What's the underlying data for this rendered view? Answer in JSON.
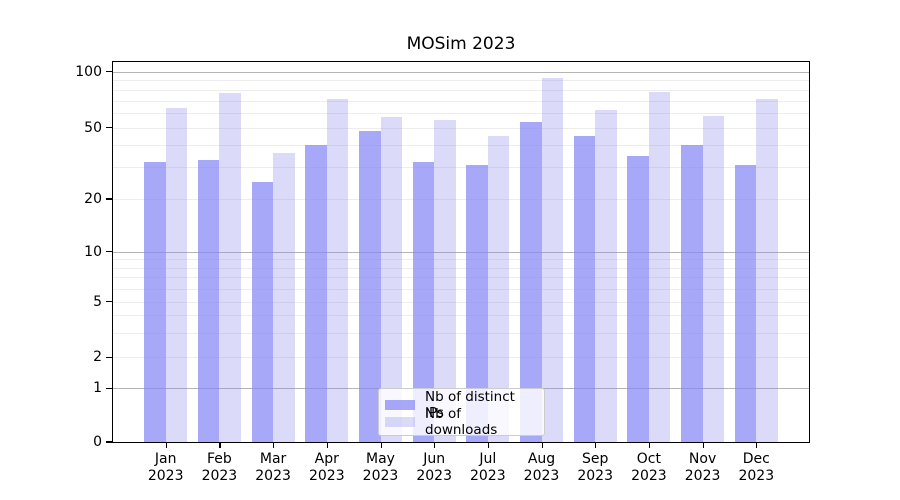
{
  "figure": {
    "title": "MOSim 2023",
    "background": "#ffffff"
  },
  "chart_data": {
    "type": "bar",
    "title": "MOSim 2023",
    "categories": [
      "Jan 2023",
      "Feb 2023",
      "Mar 2023",
      "Apr 2023",
      "May 2023",
      "Jun 2023",
      "Jul 2023",
      "Aug 2023",
      "Sep 2023",
      "Oct 2023",
      "Nov 2023",
      "Dec 2023"
    ],
    "series": [
      {
        "name": "Nb of distinct IPs",
        "color": "rgba(134,134,245,0.72)",
        "values": [
          32,
          33,
          25,
          40,
          48,
          32,
          31,
          54,
          45,
          35,
          40,
          31
        ]
      },
      {
        "name": "Nb of downloads",
        "color": "rgba(135,135,235,0.30)",
        "values": [
          64,
          77,
          36,
          71,
          57,
          55,
          45,
          93,
          62,
          78,
          58,
          71
        ]
      }
    ],
    "xlabel": "",
    "ylabel": "",
    "yscale": "log above 1, linear 0-1 (symlog-like)",
    "ylim": [
      0,
      112
    ],
    "ytick_values": [
      100,
      50,
      20,
      10,
      5,
      2,
      1,
      0
    ],
    "major_grid_values": [
      1,
      10,
      100
    ],
    "minor_grid_values": [
      2,
      3,
      4,
      5,
      6,
      7,
      8,
      9,
      20,
      30,
      40,
      50,
      60,
      70,
      80,
      90
    ],
    "grid": true,
    "legend_position": "lower center inside plot",
    "grid_minor_color": "#ededed",
    "grid_major_color": "#b4b4b4"
  }
}
